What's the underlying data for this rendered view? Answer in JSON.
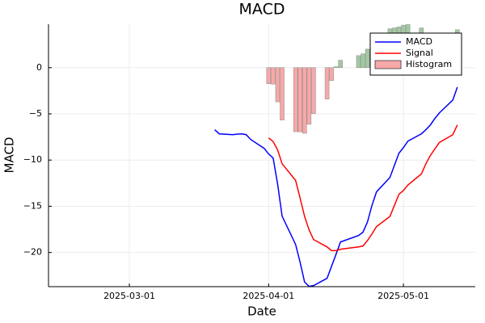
{
  "chart_data": {
    "type": "line",
    "title": "MACD",
    "x_label": "Date",
    "y_label": "MACD",
    "xlim": [
      "2025-02-11",
      "2025-05-17"
    ],
    "xticks": [
      "2025-03-01",
      "2025-04-01",
      "2025-05-01"
    ],
    "ylim": [
      -23.7,
      4.7
    ],
    "yticks": [
      {
        "value": -20,
        "label": "−20"
      },
      {
        "value": -15,
        "label": "−15"
      },
      {
        "value": -10,
        "label": "−10"
      },
      {
        "value": -5,
        "label": "−5"
      },
      0
    ],
    "grid": true,
    "legend": "top-right",
    "series": [
      {
        "name": "MACD",
        "color": "#0000ff",
        "x": [
          "2025-03-20",
          "2025-03-21",
          "2025-03-24",
          "2025-03-25",
          "2025-03-26",
          "2025-03-27",
          "2025-03-28",
          "2025-03-31",
          "2025-04-01",
          "2025-04-02",
          "2025-04-03",
          "2025-04-04",
          "2025-04-07",
          "2025-04-08",
          "2025-04-09",
          "2025-04-10",
          "2025-04-11",
          "2025-04-14",
          "2025-04-15",
          "2025-04-16",
          "2025-04-17",
          "2025-04-21",
          "2025-04-22",
          "2025-04-23",
          "2025-04-24",
          "2025-04-25",
          "2025-04-28",
          "2025-04-29",
          "2025-04-30",
          "2025-05-01",
          "2025-05-02",
          "2025-05-05",
          "2025-05-06",
          "2025-05-07",
          "2025-05-08",
          "2025-05-09",
          "2025-05-12",
          "2025-05-13"
        ],
        "values": [
          -6.72,
          -7.16,
          -7.25,
          -7.2,
          -7.16,
          -7.25,
          -7.77,
          -8.73,
          -9.34,
          -9.78,
          -12.6,
          -16.07,
          -19.13,
          -21.05,
          -23.2,
          -23.67,
          -23.58,
          -22.8,
          -21.5,
          -20.2,
          -18.86,
          -18.17,
          -17.8,
          -16.7,
          -14.9,
          -13.45,
          -11.88,
          -10.57,
          -9.26,
          -8.65,
          -7.95,
          -7.16,
          -6.72,
          -6.2,
          -5.5,
          -4.9,
          -3.5,
          -2.1
        ]
      },
      {
        "name": "Signal",
        "color": "#ff0000",
        "x": [
          "2025-04-01",
          "2025-04-02",
          "2025-04-03",
          "2025-04-04",
          "2025-04-07",
          "2025-04-08",
          "2025-04-09",
          "2025-04-10",
          "2025-04-11",
          "2025-04-14",
          "2025-04-15",
          "2025-04-16",
          "2025-04-17",
          "2025-04-21",
          "2025-04-22",
          "2025-04-23",
          "2025-04-24",
          "2025-04-25",
          "2025-04-28",
          "2025-04-29",
          "2025-04-30",
          "2025-05-01",
          "2025-05-02",
          "2025-05-05",
          "2025-05-06",
          "2025-05-07",
          "2025-05-08",
          "2025-05-09",
          "2025-05-12",
          "2025-05-13"
        ],
        "values": [
          -7.6,
          -8.0,
          -8.9,
          -10.4,
          -12.2,
          -14.1,
          -16.1,
          -17.55,
          -18.6,
          -19.4,
          -19.8,
          -19.8,
          -19.65,
          -19.4,
          -19.3,
          -18.7,
          -18.0,
          -17.2,
          -16.1,
          -14.9,
          -13.7,
          -13.3,
          -12.7,
          -11.5,
          -10.4,
          -9.5,
          -8.8,
          -8.1,
          -7.25,
          -6.2
        ]
      },
      {
        "name": "Histogram",
        "type": "bar",
        "color": "#f7a8a8",
        "positive_color": "#a3c9a3",
        "x": [
          "2025-04-01",
          "2025-04-02",
          "2025-04-03",
          "2025-04-04",
          "2025-04-07",
          "2025-04-08",
          "2025-04-09",
          "2025-04-10",
          "2025-04-11",
          "2025-04-14",
          "2025-04-15",
          "2025-04-16",
          "2025-04-17",
          "2025-04-21",
          "2025-04-22",
          "2025-04-23",
          "2025-04-24",
          "2025-04-25",
          "2025-04-28",
          "2025-04-29",
          "2025-04-30",
          "2025-05-01",
          "2025-05-02",
          "2025-05-05",
          "2025-05-06",
          "2025-05-07",
          "2025-05-08",
          "2025-05-09",
          "2025-05-12",
          "2025-05-13"
        ],
        "values": [
          -1.74,
          -1.78,
          -3.7,
          -5.67,
          -6.93,
          -6.95,
          -7.1,
          -6.12,
          -4.98,
          -3.4,
          -1.4,
          0.1,
          0.8,
          1.3,
          1.5,
          2.0,
          3.1,
          3.75,
          4.2,
          4.3,
          4.4,
          4.6,
          4.7,
          4.3,
          3.7,
          3.3,
          3.3,
          3.2,
          3.75,
          4.1
        ]
      }
    ]
  }
}
